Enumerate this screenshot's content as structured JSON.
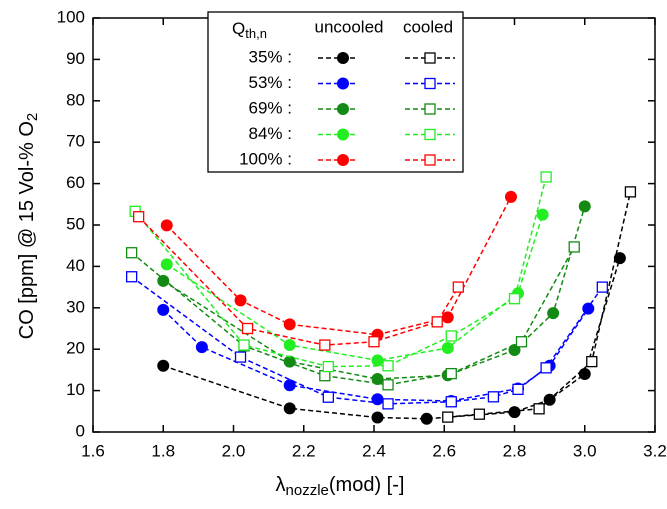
{
  "chart_data": {
    "type": "line",
    "x_label": {
      "symbol": "λ",
      "sub": "nozzle",
      "rest": "(mod) [-]"
    },
    "y_label": {
      "main": "CO [ppm] @ 15 Vol-% O",
      "sub": "2"
    },
    "xlim": [
      1.6,
      3.2
    ],
    "xticks": [
      1.6,
      1.8,
      {
        "value": 2,
        "label": "2.0"
      },
      2.2,
      2.4,
      2.6,
      2.8,
      {
        "value": 3,
        "label": "3.0"
      },
      3.2
    ],
    "ylim": [
      0,
      100
    ],
    "yticks": [
      0,
      10,
      20,
      30,
      40,
      50,
      60,
      70,
      80,
      90,
      100
    ],
    "legend": {
      "title": "Q",
      "title_sub": "th,n",
      "columns": [
        "uncooled",
        "cooled"
      ]
    },
    "series": [
      {
        "name": "35% :",
        "color": "#000000",
        "filled": true,
        "x": [
          1.8,
          2.16,
          2.41,
          2.55,
          2.8,
          2.9,
          3.0,
          3.1
        ],
        "values": [
          16,
          5.7,
          3.5,
          3.2,
          4.8,
          7.8,
          14,
          42
        ]
      },
      {
        "name": "35% :",
        "color": "#000000",
        "filled": false,
        "x": [
          2.61,
          2.7,
          2.87,
          3.02,
          3.13
        ],
        "values": [
          3.6,
          4.3,
          5.6,
          17,
          58
        ]
      },
      {
        "name": "53% :",
        "color": "#0000ff",
        "filled": true,
        "x": [
          1.8,
          1.91,
          2.16,
          2.41,
          2.62,
          2.81,
          2.9,
          3.01
        ],
        "values": [
          29.5,
          20.5,
          11.3,
          7.9,
          7.5,
          10.5,
          16,
          29.8
        ]
      },
      {
        "name": "53% :",
        "color": "#0000ff",
        "filled": false,
        "x": [
          1.71,
          2.02,
          2.27,
          2.44,
          2.62,
          2.74,
          2.81,
          2.89,
          3.05
        ],
        "values": [
          37.5,
          18.1,
          8.4,
          6.8,
          7.3,
          8.5,
          10.3,
          15.5,
          35
        ]
      },
      {
        "name": "69% :",
        "color": "#138a13",
        "filled": true,
        "x": [
          1.8,
          2.16,
          2.41,
          2.61,
          2.8,
          2.91,
          3.0
        ],
        "values": [
          36.5,
          17,
          12.8,
          13.7,
          19.8,
          28.7,
          54.5
        ]
      },
      {
        "name": "69% :",
        "color": "#138a13",
        "filled": false,
        "x": [
          1.71,
          2.03,
          2.26,
          2.44,
          2.62,
          2.82,
          2.97
        ],
        "values": [
          43.3,
          20.8,
          13.6,
          11.4,
          14.1,
          21.8,
          44.7
        ]
      },
      {
        "name": "84% :",
        "color": "#22ee22",
        "filled": true,
        "x": [
          1.81,
          2.16,
          2.41,
          2.61,
          2.81,
          2.88
        ],
        "values": [
          40.5,
          21,
          17.3,
          20.3,
          33.5,
          52.5
        ]
      },
      {
        "name": "84% :",
        "color": "#22ee22",
        "filled": false,
        "x": [
          1.72,
          2.03,
          2.27,
          2.44,
          2.62,
          2.8,
          2.89
        ],
        "values": [
          53.3,
          21,
          15.8,
          16,
          23.2,
          32.2,
          61.6
        ]
      },
      {
        "name": "100% :",
        "color": "#ff0000",
        "filled": true,
        "x": [
          1.81,
          2.02,
          2.16,
          2.41,
          2.61,
          2.79
        ],
        "values": [
          49.9,
          31.8,
          26,
          23.5,
          27.7,
          56.8
        ]
      },
      {
        "name": "100% :",
        "color": "#ff0000",
        "filled": false,
        "x": [
          1.73,
          2.04,
          2.26,
          2.4,
          2.58,
          2.64
        ],
        "values": [
          52,
          25,
          21,
          21.8,
          26.6,
          35
        ]
      }
    ]
  }
}
